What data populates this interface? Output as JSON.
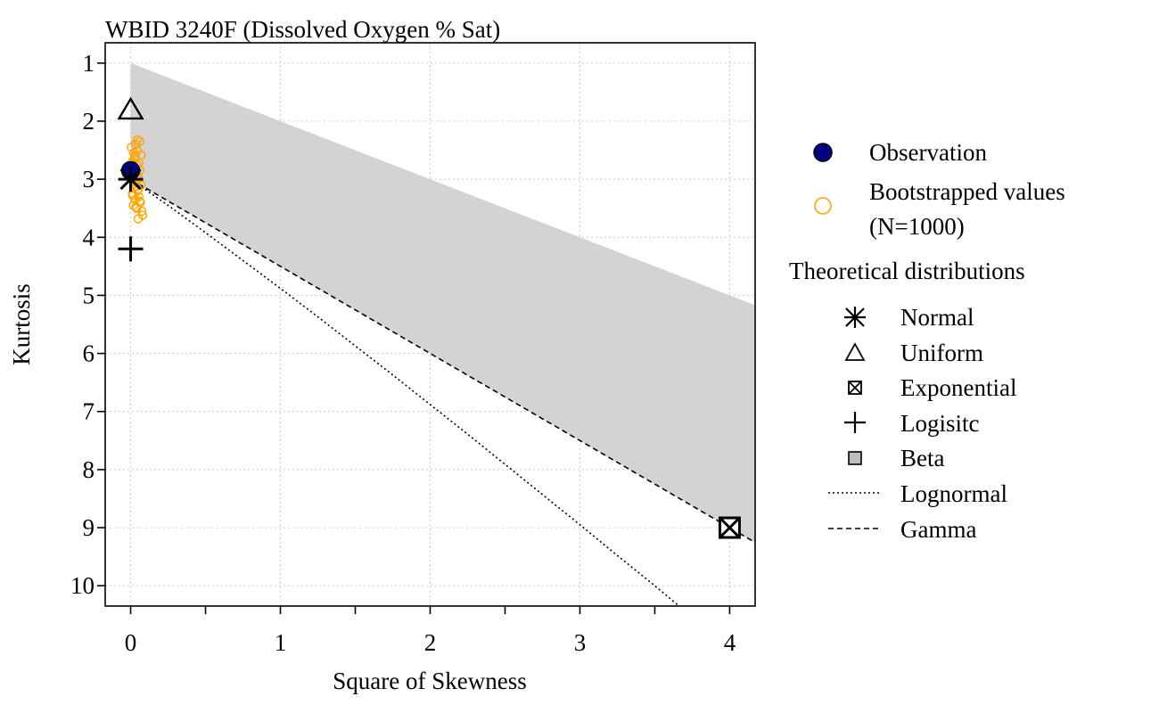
{
  "chart_data": {
    "type": "scatter",
    "title": "WBID 3240F (Dissolved Oxygen % Sat)",
    "xlabel": "Square of Skewness",
    "ylabel": "Kurtosis",
    "xlim": [
      -0.17,
      4.17
    ],
    "ylim": [
      10.35,
      0.65
    ],
    "y_reversed": true,
    "x_ticks": [
      0,
      1,
      2,
      3,
      4
    ],
    "x_minor_ticks": [
      0.5,
      1.5,
      2.5,
      3.5
    ],
    "y_ticks": [
      1,
      2,
      3,
      4,
      5,
      6,
      7,
      8,
      9,
      10
    ],
    "x_tick_labels": [
      "0",
      "1",
      "2",
      "3",
      "4"
    ],
    "y_tick_labels": [
      "1",
      "2",
      "3",
      "4",
      "5",
      "6",
      "7",
      "8",
      "9",
      "10"
    ],
    "grid": true,
    "legend_position": "right",
    "beta_region": {
      "upper_line": {
        "intercept": 1,
        "slope": 1
      },
      "lower_line": {
        "intercept": 3,
        "slope": 1.5
      },
      "color": "#d3d3d3"
    },
    "observation": {
      "x": 0.0,
      "y": 2.85,
      "color": "#000080"
    },
    "bootstrap": {
      "color": "#FFA500",
      "points": [
        [
          0.005,
          2.45
        ],
        [
          0.02,
          2.55
        ],
        [
          0.03,
          2.62
        ],
        [
          0.01,
          2.7
        ],
        [
          0.04,
          2.75
        ],
        [
          0.015,
          2.8
        ],
        [
          0.06,
          2.85
        ],
        [
          0.025,
          2.9
        ],
        [
          0.05,
          2.95
        ],
        [
          0.008,
          3.0
        ],
        [
          0.035,
          3.05
        ],
        [
          0.07,
          3.1
        ],
        [
          0.02,
          3.15
        ],
        [
          0.045,
          3.2
        ],
        [
          0.012,
          3.25
        ],
        [
          0.055,
          3.3
        ],
        [
          0.03,
          3.35
        ],
        [
          0.065,
          3.4
        ],
        [
          0.018,
          3.45
        ],
        [
          0.04,
          3.5
        ],
        [
          0.075,
          3.55
        ],
        [
          0.08,
          3.62
        ],
        [
          0.05,
          3.68
        ],
        [
          0.06,
          2.35
        ],
        [
          0.035,
          2.4
        ],
        [
          0.045,
          2.5
        ],
        [
          0.07,
          2.58
        ],
        [
          0.025,
          2.65
        ],
        [
          0.055,
          2.72
        ],
        [
          0.01,
          2.78
        ],
        [
          0.03,
          2.88
        ],
        [
          0.04,
          2.98
        ],
        [
          0.02,
          3.08
        ],
        [
          0.05,
          3.18
        ],
        [
          0.015,
          3.28
        ],
        [
          0.06,
          3.38
        ],
        [
          0.035,
          3.48
        ],
        [
          0.045,
          2.32
        ],
        [
          0.028,
          2.6
        ],
        [
          0.038,
          3.12
        ]
      ]
    },
    "theoretical": {
      "normal": {
        "x": 0,
        "y": 3
      },
      "uniform": {
        "x": 0,
        "y": 1.8
      },
      "exponential": {
        "x": 4,
        "y": 9
      },
      "logistic": {
        "x": 0,
        "y": 4.2
      }
    },
    "gamma_line": {
      "intercept": 3,
      "slope": 1.5
    },
    "lognormal_curve": [
      [
        0,
        3.0
      ],
      [
        0.25,
        3.45
      ],
      [
        0.5,
        3.92
      ],
      [
        0.75,
        4.4
      ],
      [
        1.0,
        4.88
      ],
      [
        1.25,
        5.37
      ],
      [
        1.5,
        5.87
      ],
      [
        1.75,
        6.37
      ],
      [
        2.0,
        6.88
      ],
      [
        2.25,
        7.39
      ],
      [
        2.5,
        7.91
      ],
      [
        2.75,
        8.43
      ],
      [
        3.0,
        8.95
      ],
      [
        3.25,
        9.48
      ],
      [
        3.5,
        10.0
      ],
      [
        3.75,
        10.54
      ],
      [
        4.0,
        11.07
      ]
    ]
  },
  "legend": {
    "observation": "Observation",
    "bootstrap_line1": "Bootstrapped values",
    "bootstrap_line2": "(N=1000)",
    "theoretical_header": "Theoretical distributions",
    "items": {
      "normal": "Normal",
      "uniform": "Uniform",
      "exponential": "Exponential",
      "logistic": "Logisitc",
      "beta": "Beta",
      "lognormal": "Lognormal",
      "gamma": "Gamma"
    }
  }
}
